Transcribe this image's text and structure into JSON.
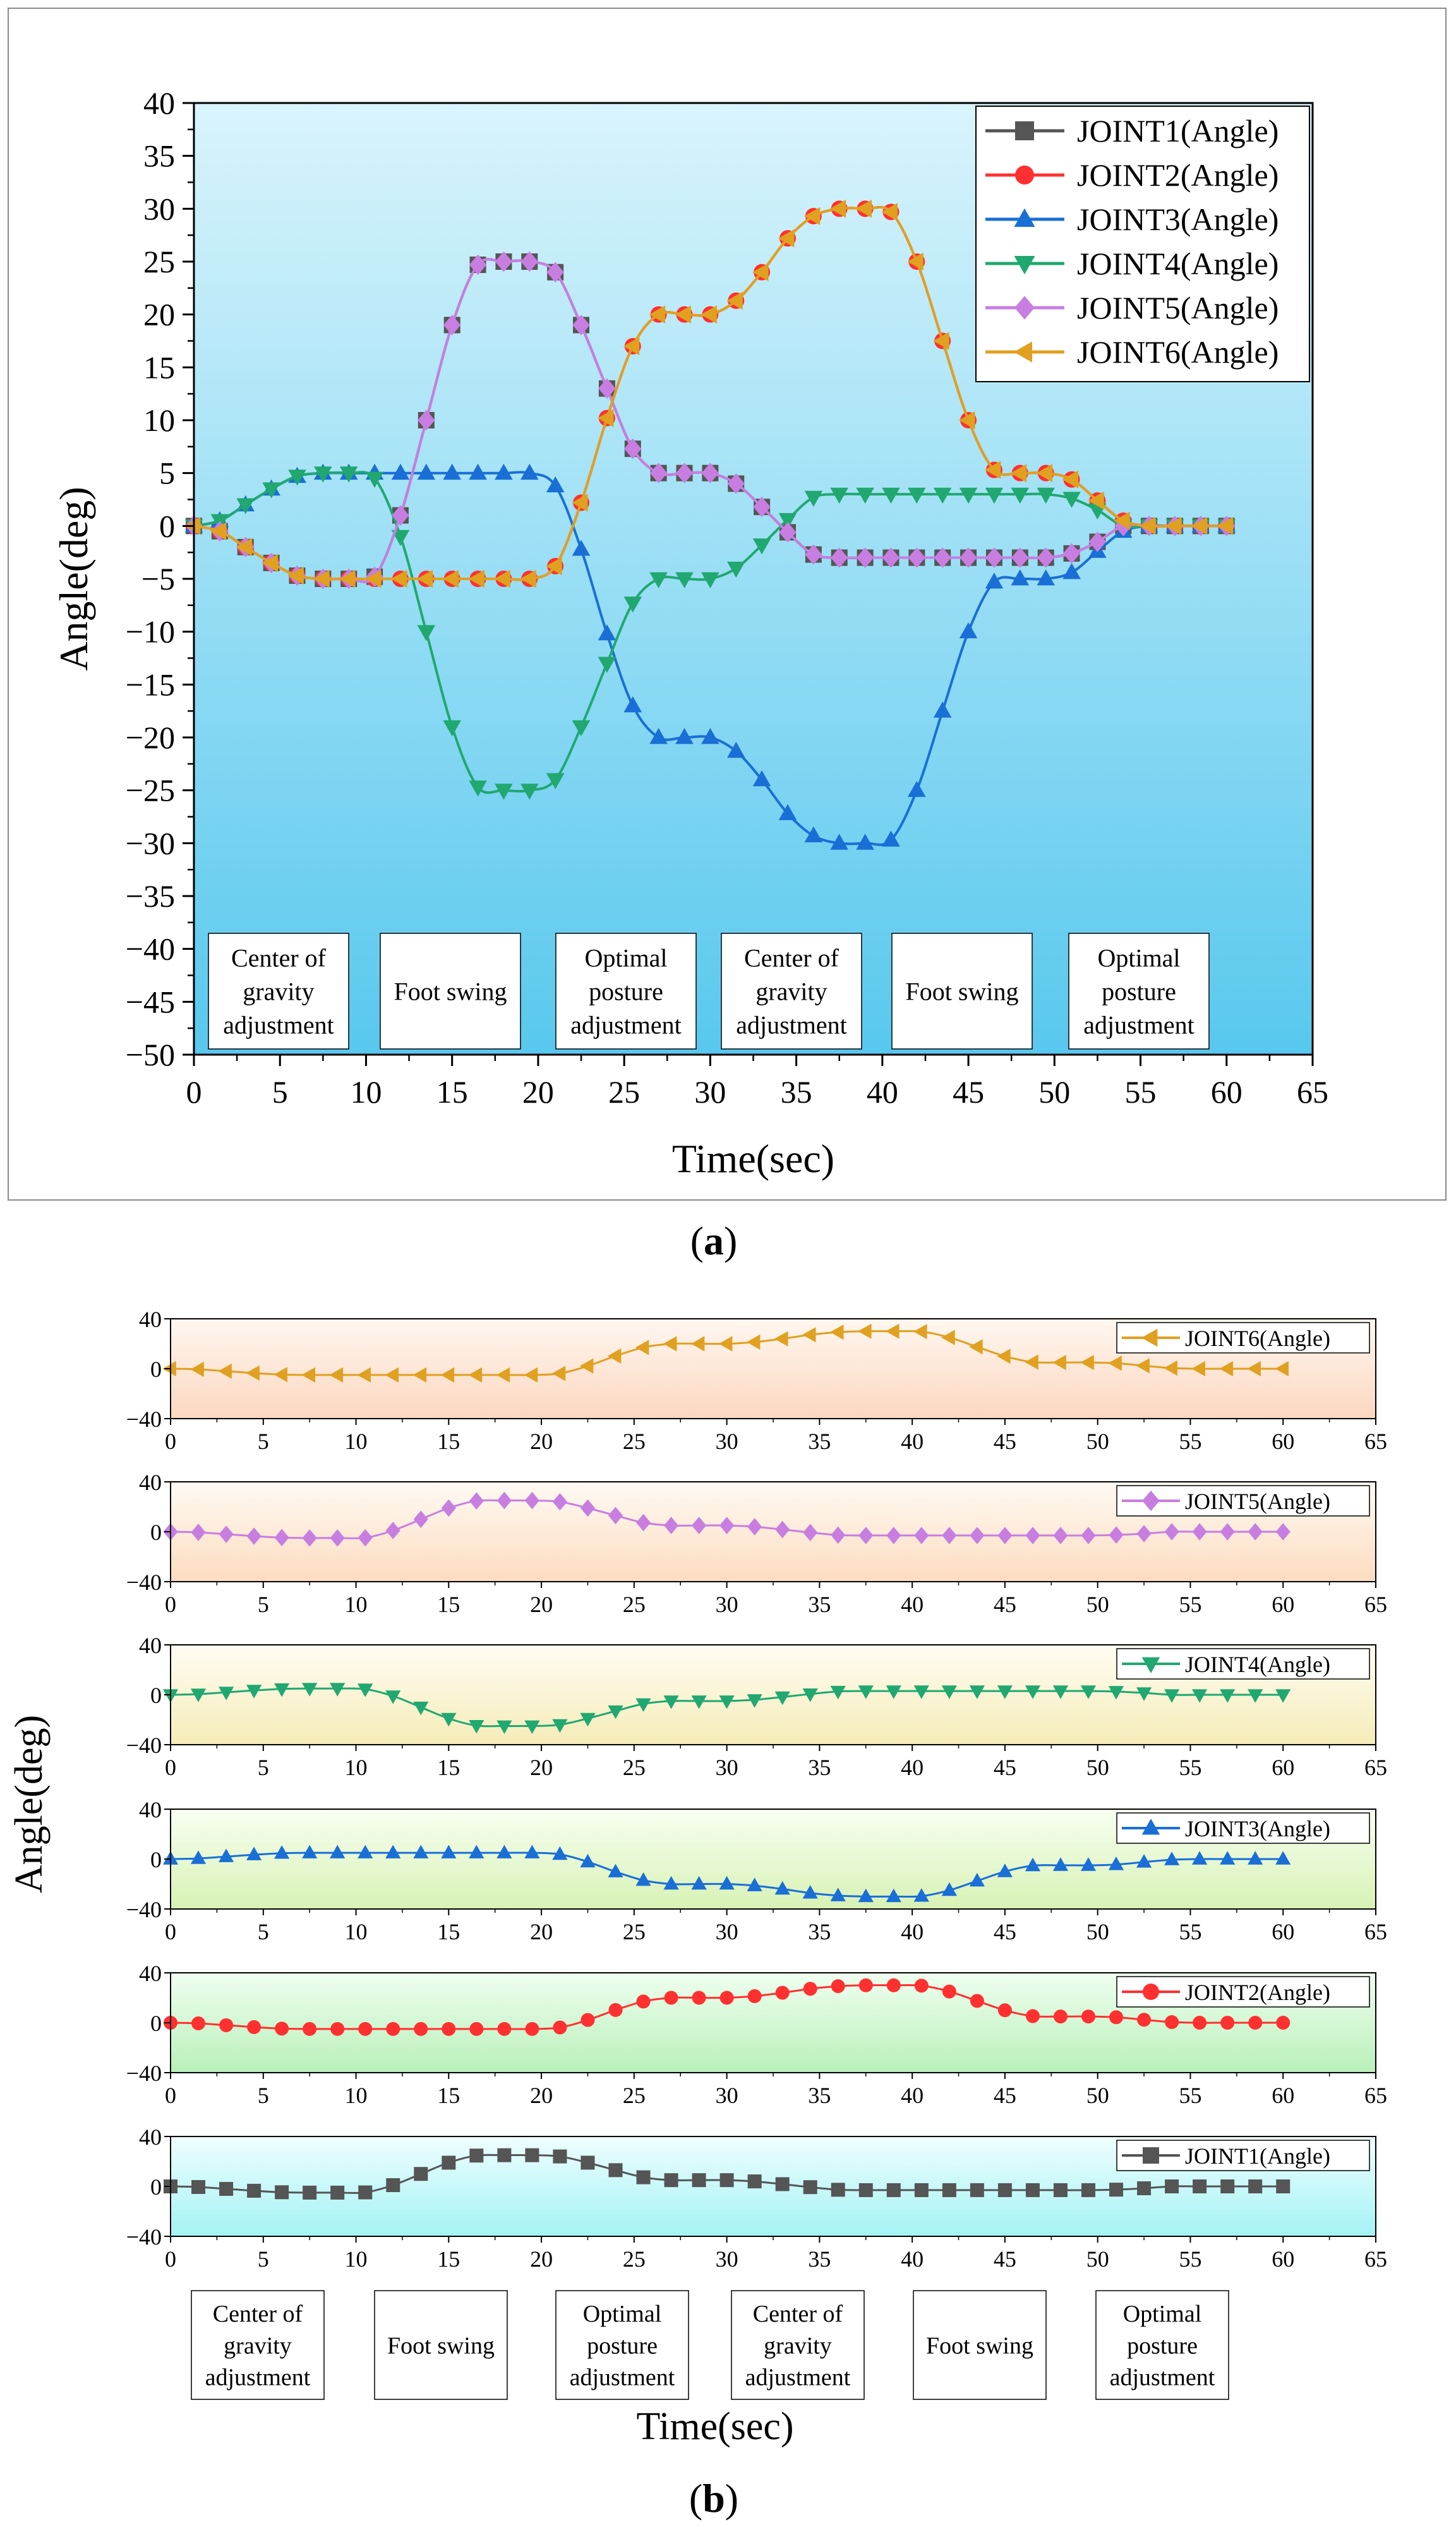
{
  "chart_data": [
    {
      "panel": "a",
      "type": "line",
      "panel_label": "a",
      "xlabel": "Time(sec)",
      "ylabel": "Angle(deg)",
      "xlim": [
        0,
        65
      ],
      "ylim": [
        -50,
        40
      ],
      "xticks": [
        0,
        5,
        10,
        15,
        20,
        25,
        30,
        35,
        40,
        45,
        50,
        55,
        60,
        65
      ],
      "yticks": [
        40,
        35,
        30,
        25,
        20,
        15,
        10,
        5,
        0,
        -5,
        -10,
        -15,
        -20,
        -25,
        -30,
        -35,
        -40,
        -45,
        -50
      ],
      "grid": false,
      "legend_position": "top-right",
      "background": "blue gradient",
      "x": [
        0,
        1.5,
        3,
        4.5,
        6,
        7.5,
        9,
        10.5,
        12,
        13.5,
        15,
        16.5,
        18,
        19.5,
        21,
        22.5,
        24,
        25.5,
        27,
        28.5,
        30,
        31.5,
        33,
        34.5,
        36,
        37.5,
        39,
        40.5,
        42,
        43.5,
        45,
        46.5,
        48,
        49.5,
        51,
        52.5,
        54,
        55.5,
        57,
        58.5,
        60
      ],
      "series": [
        {
          "name": "JOINT1(Angle)",
          "color": "#555555",
          "marker": "square",
          "values": [
            0,
            -0.5,
            -2,
            -3.5,
            -4.7,
            -5,
            -5,
            -4.8,
            1,
            10,
            19,
            24.7,
            25,
            25,
            24,
            19,
            13,
            7.3,
            5,
            5,
            5,
            4,
            1.8,
            -0.6,
            -2.7,
            -3,
            -3,
            -3,
            -3,
            -3,
            -3,
            -3,
            -3,
            -3,
            -2.6,
            -1.5,
            0,
            0,
            0,
            0,
            0
          ]
        },
        {
          "name": "JOINT2(Angle)",
          "color": "#ff3030",
          "marker": "circle",
          "values": [
            0,
            -0.5,
            -2,
            -3.5,
            -4.7,
            -5,
            -5,
            -5,
            -5,
            -5,
            -5,
            -5,
            -5,
            -5,
            -3.8,
            2.2,
            10.2,
            17,
            20,
            20,
            20,
            21.3,
            24,
            27.2,
            29.3,
            30,
            30,
            29.7,
            25,
            17.5,
            10,
            5.3,
            5,
            5,
            4.4,
            2.4,
            0.5,
            0,
            0,
            0,
            0
          ]
        },
        {
          "name": "JOINT3(Angle)",
          "color": "#1a6fd6",
          "marker": "triangle-up",
          "values": [
            0,
            0.5,
            2,
            3.5,
            4.7,
            5,
            5,
            5,
            5,
            5,
            5,
            5,
            5,
            5,
            3.8,
            -2.2,
            -10.2,
            -17,
            -20,
            -20,
            -20,
            -21.3,
            -24,
            -27.2,
            -29.3,
            -30,
            -30,
            -29.7,
            -25,
            -17.5,
            -10,
            -5.3,
            -5,
            -5,
            -4.4,
            -2.4,
            -0.5,
            0,
            0,
            0,
            0
          ]
        },
        {
          "name": "JOINT4(Angle)",
          "color": "#20a870",
          "marker": "triangle-down",
          "values": [
            0,
            0.5,
            2,
            3.5,
            4.7,
            5,
            5,
            4.5,
            -1,
            -10,
            -19,
            -24.7,
            -25,
            -25,
            -24,
            -19,
            -13,
            -7.3,
            -5,
            -5,
            -5,
            -4,
            -1.8,
            0.6,
            2.7,
            3,
            3,
            3,
            3,
            3,
            3,
            3,
            3,
            3,
            2.6,
            1.5,
            0,
            0,
            0,
            0,
            0
          ]
        },
        {
          "name": "JOINT5(Angle)",
          "color": "#c77ee0",
          "marker": "diamond",
          "values": [
            0,
            -0.5,
            -2,
            -3.5,
            -4.7,
            -5,
            -5,
            -4.8,
            1,
            10,
            19,
            24.7,
            25,
            25,
            24,
            19,
            13,
            7.3,
            5,
            5,
            5,
            4,
            1.8,
            -0.6,
            -2.7,
            -3,
            -3,
            -3,
            -3,
            -3,
            -3,
            -3,
            -3,
            -3,
            -2.6,
            -1.5,
            0,
            0,
            0,
            0,
            0
          ]
        },
        {
          "name": "JOINT6(Angle)",
          "color": "#e0a020",
          "marker": "triangle-left",
          "values": [
            0,
            -0.5,
            -2,
            -3.5,
            -4.7,
            -5,
            -5,
            -5,
            -5,
            -5,
            -5,
            -5,
            -5,
            -5,
            -3.8,
            2.2,
            10.2,
            17,
            20,
            20,
            20,
            21.3,
            24,
            27.2,
            29.3,
            30,
            30,
            29.7,
            25,
            17.5,
            10,
            5.3,
            5,
            5,
            4.4,
            2.4,
            0.5,
            0,
            0,
            0,
            0
          ]
        }
      ],
      "phase_boxes": [
        {
          "lines": [
            "Center of",
            "gravity",
            "adjustment"
          ]
        },
        {
          "lines": [
            "Foot swing"
          ]
        },
        {
          "lines": [
            "Optimal",
            "posture",
            "adjustment"
          ]
        },
        {
          "lines": [
            "Center of",
            "gravity",
            "adjustment"
          ]
        },
        {
          "lines": [
            "Foot swing"
          ]
        },
        {
          "lines": [
            "Optimal",
            "posture",
            "adjustment"
          ]
        }
      ]
    },
    {
      "panel": "b",
      "type": "line",
      "panel_label": "b",
      "xlabel": "Time(sec)",
      "ylabel": "Angle(deg)",
      "xlim": [
        0,
        65
      ],
      "ylim": [
        -40,
        40
      ],
      "xticks": [
        0,
        5,
        10,
        15,
        20,
        25,
        30,
        35,
        40,
        45,
        50,
        55,
        60,
        65
      ],
      "yticks": [
        40,
        0,
        -40
      ],
      "grid": false,
      "legend_position": "top-right",
      "x": [
        0,
        1.5,
        3,
        4.5,
        6,
        7.5,
        9,
        10.5,
        12,
        13.5,
        15,
        16.5,
        18,
        19.5,
        21,
        22.5,
        24,
        25.5,
        27,
        28.5,
        30,
        31.5,
        33,
        34.5,
        36,
        37.5,
        39,
        40.5,
        42,
        43.5,
        45,
        46.5,
        48,
        49.5,
        51,
        52.5,
        54,
        55.5,
        57,
        58.5,
        60
      ],
      "subplots": [
        {
          "series_ref": "JOINT6(Angle)",
          "legend": "JOINT6(Angle)",
          "bg_from": "#fbd7bf",
          "bg_to": "#fff7f0"
        },
        {
          "series_ref": "JOINT5(Angle)",
          "legend": "JOINT5(Angle)",
          "bg_from": "#fcdcc0",
          "bg_to": "#fffaf3"
        },
        {
          "series_ref": "JOINT4(Angle)",
          "legend": "JOINT4(Angle)",
          "bg_from": "#f5ecb8",
          "bg_to": "#fffdf3"
        },
        {
          "series_ref": "JOINT3(Angle)",
          "legend": "JOINT3(Angle)",
          "bg_from": "#d7f2b4",
          "bg_to": "#f8fff2"
        },
        {
          "series_ref": "JOINT2(Angle)",
          "legend": "JOINT2(Angle)",
          "bg_from": "#b9f0b9",
          "bg_to": "#effff0"
        },
        {
          "series_ref": "JOINT1(Angle)",
          "legend": "JOINT1(Angle)",
          "bg_from": "#a4f3f5",
          "bg_to": "#effefe"
        }
      ],
      "phase_boxes": [
        {
          "lines": [
            "Center of",
            "gravity",
            "adjustment"
          ]
        },
        {
          "lines": [
            "Foot swing"
          ]
        },
        {
          "lines": [
            "Optimal",
            "posture",
            "adjustment"
          ]
        },
        {
          "lines": [
            "Center of",
            "gravity",
            "adjustment"
          ]
        },
        {
          "lines": [
            "Foot swing"
          ]
        },
        {
          "lines": [
            "Optimal",
            "posture",
            "adjustment"
          ]
        }
      ]
    }
  ]
}
